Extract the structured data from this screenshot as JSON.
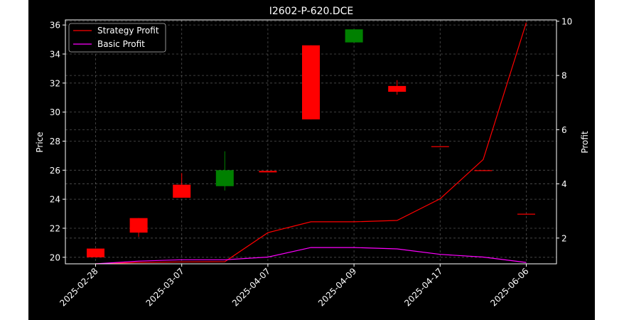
{
  "chart_data": {
    "type": "candlestick",
    "title": "I2602-P-620.DCE",
    "ylabel_left": "Price",
    "ylabel_right": "Profit",
    "ylim_left": [
      19.55,
      36.35
    ],
    "ylim_right": [
      1.05,
      10.05
    ],
    "yticks_left": [
      20,
      22,
      24,
      26,
      28,
      30,
      32,
      34,
      36
    ],
    "yticks_right": [
      2,
      4,
      6,
      8,
      10
    ],
    "grid": true,
    "legend_position": "top-left",
    "background": "#000000",
    "text_color": "#ffffff",
    "x_tick_labels": [
      {
        "index": 0,
        "label": "2025-02-28"
      },
      {
        "index": 2,
        "label": "2025-03-07"
      },
      {
        "index": 4,
        "label": "2025-04-07"
      },
      {
        "index": 6,
        "label": "2025-04-09"
      },
      {
        "index": 8,
        "label": "2025-04-17"
      },
      {
        "index": 10,
        "label": "2025-06-06"
      }
    ],
    "candles": [
      {
        "index": 0,
        "open": 20.6,
        "close": 20.0,
        "high": 20.6,
        "low": 20.0,
        "color": "#ff0000"
      },
      {
        "index": 1,
        "open": 22.7,
        "close": 21.7,
        "high": 22.7,
        "low": 21.4,
        "color": "#ff0000"
      },
      {
        "index": 2,
        "open": 25.0,
        "close": 24.1,
        "high": 25.8,
        "low": 24.1,
        "color": "#ff0000"
      },
      {
        "index": 3,
        "open": 24.9,
        "close": 26.0,
        "high": 27.3,
        "low": 24.6,
        "color": "#008000"
      },
      {
        "index": 4,
        "open": 25.95,
        "close": 25.85,
        "high": 25.95,
        "low": 25.85,
        "color": "#ff0000"
      },
      {
        "index": 5,
        "open": 34.6,
        "close": 29.5,
        "high": 34.6,
        "low": 29.5,
        "color": "#ff0000"
      },
      {
        "index": 6,
        "open": 34.8,
        "close": 35.7,
        "high": 35.7,
        "low": 34.8,
        "color": "#008000"
      },
      {
        "index": 7,
        "open": 31.8,
        "close": 31.4,
        "high": 32.2,
        "low": 31.2,
        "color": "#ff0000"
      },
      {
        "index": 8,
        "open": 27.65,
        "close": 27.6,
        "high": 27.65,
        "low": 27.6,
        "color": "#ff0000"
      },
      {
        "index": 9,
        "open": 26.0,
        "close": 25.95,
        "high": 26.0,
        "low": 25.95,
        "color": "#ff0000"
      },
      {
        "index": 10,
        "open": 23.0,
        "close": 22.95,
        "high": 23.0,
        "low": 22.95,
        "color": "#ff0000"
      }
    ],
    "series": [
      {
        "name": "Strategy Profit",
        "color": "#ff0000",
        "axis": "right",
        "values": [
          1.05,
          1.1,
          1.12,
          1.13,
          2.2,
          2.6,
          2.6,
          2.65,
          3.45,
          4.9,
          9.95
        ]
      },
      {
        "name": "Basic Profit",
        "color": "#ff00ff",
        "axis": "right",
        "values": [
          1.05,
          1.15,
          1.2,
          1.2,
          1.3,
          1.65,
          1.65,
          1.6,
          1.4,
          1.3,
          1.1
        ]
      }
    ]
  }
}
